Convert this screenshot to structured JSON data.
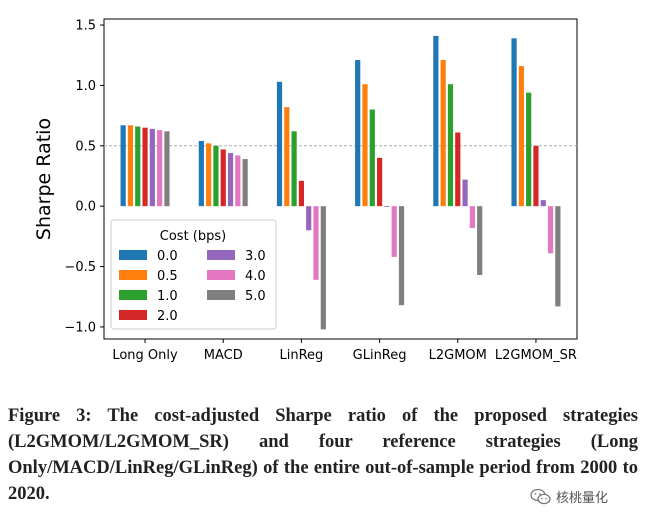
{
  "chart_data": {
    "type": "bar",
    "ylabel": "Sharpe Ratio",
    "ylim": [
      -1.1,
      1.55
    ],
    "yticks": [
      1.5,
      1.0,
      0.5,
      0.0,
      -0.5,
      -1.0
    ],
    "ytick_labels": [
      "1.5",
      "1.0",
      "0.5",
      "0.0",
      "−0.5",
      "−1.0"
    ],
    "reference_line": 0.5,
    "categories": [
      "Long Only",
      "MACD",
      "LinReg",
      "GLinReg",
      "L2GMOM",
      "L2GMOM_SR"
    ],
    "legend": {
      "title": "Cost (bps)",
      "location": "lower-left"
    },
    "series": [
      {
        "name": "0.0",
        "color": "#1f77b4",
        "values": [
          0.67,
          0.54,
          1.03,
          1.21,
          1.41,
          1.39
        ]
      },
      {
        "name": "0.5",
        "color": "#ff7f0e",
        "values": [
          0.67,
          0.52,
          0.82,
          1.01,
          1.21,
          1.16
        ]
      },
      {
        "name": "1.0",
        "color": "#2ca02c",
        "values": [
          0.66,
          0.5,
          0.62,
          0.8,
          1.01,
          0.94
        ]
      },
      {
        "name": "2.0",
        "color": "#d62728",
        "values": [
          0.65,
          0.47,
          0.21,
          0.4,
          0.61,
          0.5
        ]
      },
      {
        "name": "3.0",
        "color": "#9467bd",
        "values": [
          0.64,
          0.44,
          -0.2,
          0.0,
          0.22,
          0.05
        ]
      },
      {
        "name": "4.0",
        "color": "#e377c2",
        "values": [
          0.63,
          0.42,
          -0.61,
          -0.42,
          -0.18,
          -0.39
        ]
      },
      {
        "name": "5.0",
        "color": "#7f7f7f",
        "values": [
          0.62,
          0.39,
          -1.02,
          -0.82,
          -0.57,
          -0.83
        ]
      }
    ]
  },
  "caption": "Figure 3: The cost-adjusted Sharpe ratio of the proposed strategies (L2GMOM/L2GMOM_SR) and four reference strategies (Long Only/MACD/LinReg/GLinReg) of the entire out-of-sample period from 2000 to 2020.",
  "watermark": {
    "icon": "wechat-icon",
    "text": "核桃量化"
  }
}
